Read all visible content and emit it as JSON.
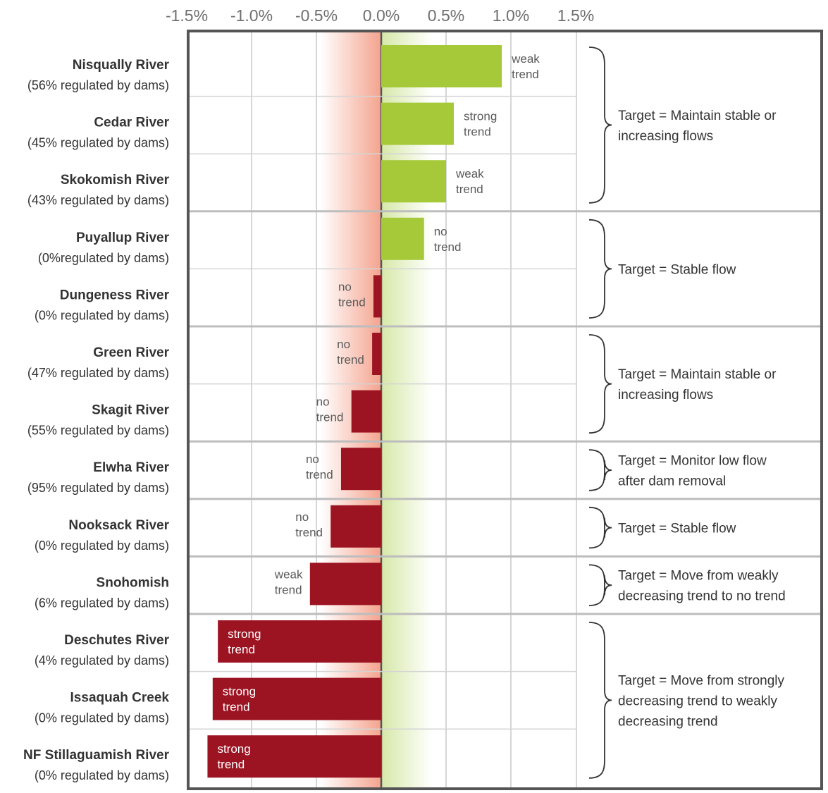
{
  "chart_data": {
    "type": "bar",
    "orientation": "horizontal",
    "xlim": [
      -1.5,
      1.5
    ],
    "x_ticks": [
      "-1.5%",
      "-1.0%",
      "-0.5%",
      "0.0%",
      "0.5%",
      "1.0%",
      "1.5%"
    ],
    "x_tick_values": [
      -1.5,
      -1.0,
      -0.5,
      0.0,
      0.5,
      1.0,
      1.5
    ],
    "categories": [
      {
        "name": "Nisqually River",
        "regulation": "(56% regulated by dams)",
        "value": 0.93,
        "trend": [
          "weak",
          "trend"
        ]
      },
      {
        "name": "Cedar River",
        "regulation": "(45% regulated by dams)",
        "value": 0.56,
        "trend": [
          "strong",
          "trend"
        ]
      },
      {
        "name": "Skokomish River",
        "regulation": "(43% regulated by dams)",
        "value": 0.5,
        "trend": [
          "weak",
          "trend"
        ]
      },
      {
        "name": "Puyallup River",
        "regulation": "(0%regulated by dams)",
        "value": 0.33,
        "trend": [
          "no",
          "trend"
        ]
      },
      {
        "name": "Dungeness River",
        "regulation": "(0% regulated by dams)",
        "value": -0.06,
        "trend": [
          "no",
          "trend"
        ]
      },
      {
        "name": "Green River",
        "regulation": "(47% regulated by dams)",
        "value": -0.07,
        "trend": [
          "no",
          "trend"
        ]
      },
      {
        "name": "Skagit River",
        "regulation": "(55% regulated by dams)",
        "value": -0.23,
        "trend": [
          "no",
          "trend"
        ]
      },
      {
        "name": "Elwha River",
        "regulation": "(95% regulated by dams)",
        "value": -0.31,
        "trend": [
          "no",
          "trend"
        ]
      },
      {
        "name": "Nooksack River",
        "regulation": "(0% regulated by dams)",
        "value": -0.39,
        "trend": [
          "no",
          "trend"
        ]
      },
      {
        "name": "Snohomish",
        "regulation": "(6% regulated by dams)",
        "value": -0.55,
        "trend": [
          "weak",
          "trend"
        ]
      },
      {
        "name": "Deschutes River",
        "regulation": "(4% regulated by dams)",
        "value": -1.26,
        "trend": [
          "strong",
          "trend"
        ]
      },
      {
        "name": "Issaquah Creek",
        "regulation": "(0% regulated by dams)",
        "value": -1.3,
        "trend": [
          "strong",
          "trend"
        ]
      },
      {
        "name": "NF Stillaguamish River",
        "regulation": "(0% regulated by dams)",
        "value": -1.34,
        "trend": [
          "strong",
          "trend"
        ]
      }
    ],
    "groups": [
      {
        "rows": [
          0,
          1,
          2
        ],
        "target": [
          "Target = Maintain stable or",
          "increasing flows"
        ]
      },
      {
        "rows": [
          3,
          4
        ],
        "target": [
          "Target = Stable flow"
        ]
      },
      {
        "rows": [
          5,
          6
        ],
        "target": [
          "Target = Maintain stable or",
          "increasing flows"
        ]
      },
      {
        "rows": [
          7
        ],
        "target": [
          "Target = Monitor low flow",
          "after dam removal"
        ]
      },
      {
        "rows": [
          8
        ],
        "target": [
          "Target = Stable flow"
        ]
      },
      {
        "rows": [
          9
        ],
        "target": [
          "Target = Move from weakly",
          "decreasing trend to no trend"
        ]
      },
      {
        "rows": [
          10,
          11,
          12
        ],
        "target": [
          "Target = Move from strongly",
          "decreasing trend to weakly",
          "decreasing trend"
        ]
      }
    ],
    "colors": {
      "positive": "#a6c93a",
      "negative": "#9c1322",
      "negative_zone": "#f4a38e",
      "positive_zone": "#d6e8a8",
      "grid": "#c8c8c8",
      "frame": "#555555"
    }
  }
}
